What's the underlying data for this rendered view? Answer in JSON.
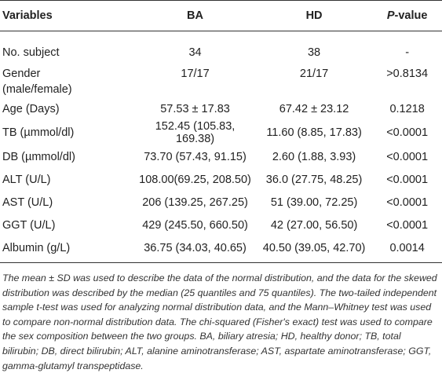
{
  "table": {
    "columns": [
      "Variables",
      "BA",
      "HD",
      {
        "italic": "P",
        "text": "-value"
      }
    ],
    "rows": [
      [
        "No. subject",
        "34",
        "38",
        "-"
      ],
      [
        [
          "Gender",
          "(male/female)"
        ],
        "17/17",
        "21/17",
        ">0.8134"
      ],
      [
        "Age (Days)",
        "57.53 ± 17.83",
        "67.42 ± 23.12",
        "0.1218"
      ],
      [
        "TB (µmmol/dl)",
        "152.45 (105.83, 169.38)",
        "11.60 (8.85, 17.83)",
        "<0.0001"
      ],
      [
        "DB (µmmol/dl)",
        "73.70 (57.43, 91.15)",
        "2.60 (1.88, 3.93)",
        "<0.0001"
      ],
      [
        "ALT (U/L)",
        "108.00(69.25, 208.50)",
        "36.0 (27.75, 48.25)",
        "<0.0001"
      ],
      [
        "AST (U/L)",
        "206 (139.25, 267.25)",
        "51 (39.00, 72.25)",
        "<0.0001"
      ],
      [
        "GGT (U/L)",
        "429 (245.50, 660.50)",
        "42 (27.00, 56.50)",
        "<0.0001"
      ],
      [
        "Albumin (g/L)",
        "36.75 (34.03, 40.65)",
        "40.50 (39.05, 42.70)",
        "0.0014"
      ]
    ]
  },
  "footnote": "The mean ± SD was used to describe the data of the normal distribution, and the data for the skewed distribution was described by the median (25 quantiles and 75 quantiles). The two-tailed independent sample t-test was used for analyzing normal distribution data, and the Mann–Whitney test was used to compare non-normal distribution data. The chi-squared (Fisher's exact) test was used to compare the sex composition between the two groups. BA, biliary atresia; HD, healthy donor; TB, total bilirubin; DB, direct bilirubin; ALT, alanine aminotransferase; AST, aspartate aminotransferase; GGT, gamma-glutamyl transpeptidase."
}
